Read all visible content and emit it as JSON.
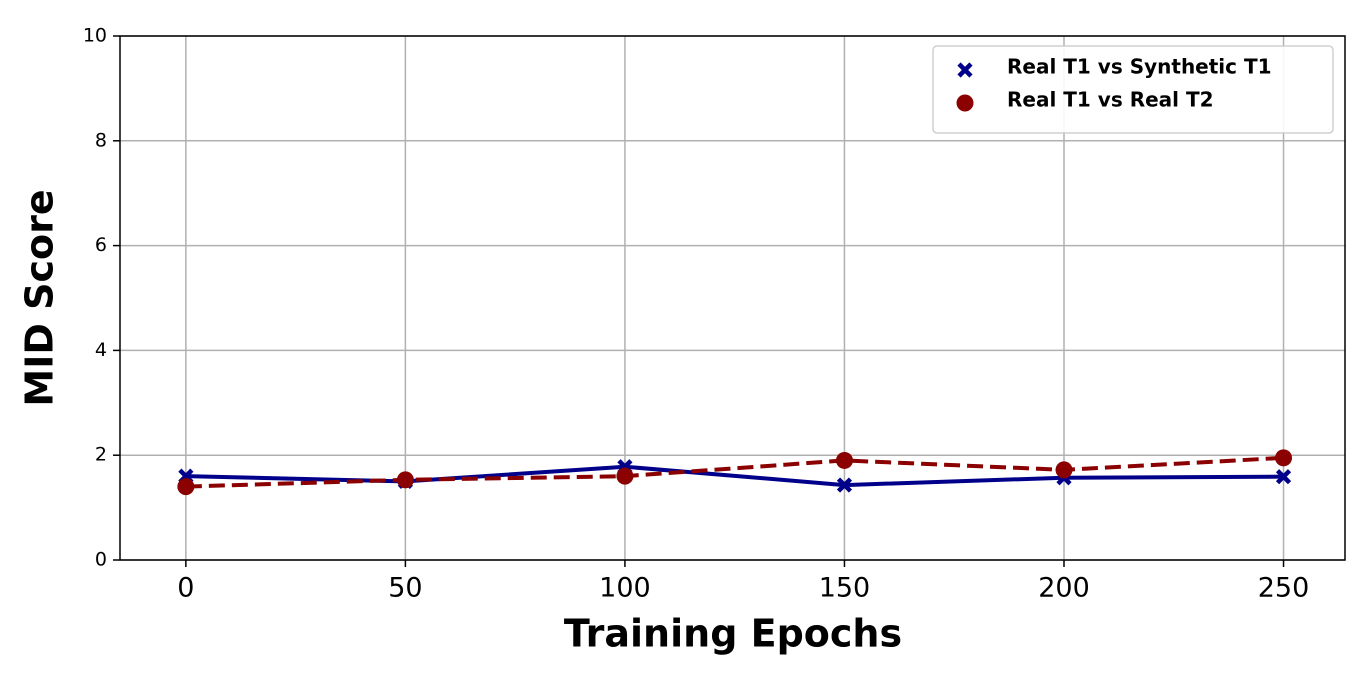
{
  "chart_data": {
    "type": "line",
    "xlabel": "Training Epochs",
    "ylabel": "MID Score",
    "x": [
      0,
      50,
      100,
      150,
      200,
      250
    ],
    "series": [
      {
        "name": "Real T1 vs Synthetic T1",
        "color": "#00008b",
        "linestyle": "solid",
        "marker": "X",
        "values": [
          1.6,
          1.5,
          1.78,
          1.43,
          1.57,
          1.59
        ]
      },
      {
        "name": "Real T1 vs Real T2",
        "color": "#8b0000",
        "linestyle": "dashed",
        "marker": "o",
        "values": [
          1.4,
          1.53,
          1.6,
          1.9,
          1.72,
          1.95
        ]
      }
    ],
    "xlim": [
      -15,
      264
    ],
    "ylim": [
      0,
      10
    ],
    "xticks": [
      0,
      50,
      100,
      150,
      200,
      250
    ],
    "yticks": [
      0,
      2,
      4,
      6,
      8,
      10
    ],
    "grid": true,
    "legend": "upper right"
  }
}
